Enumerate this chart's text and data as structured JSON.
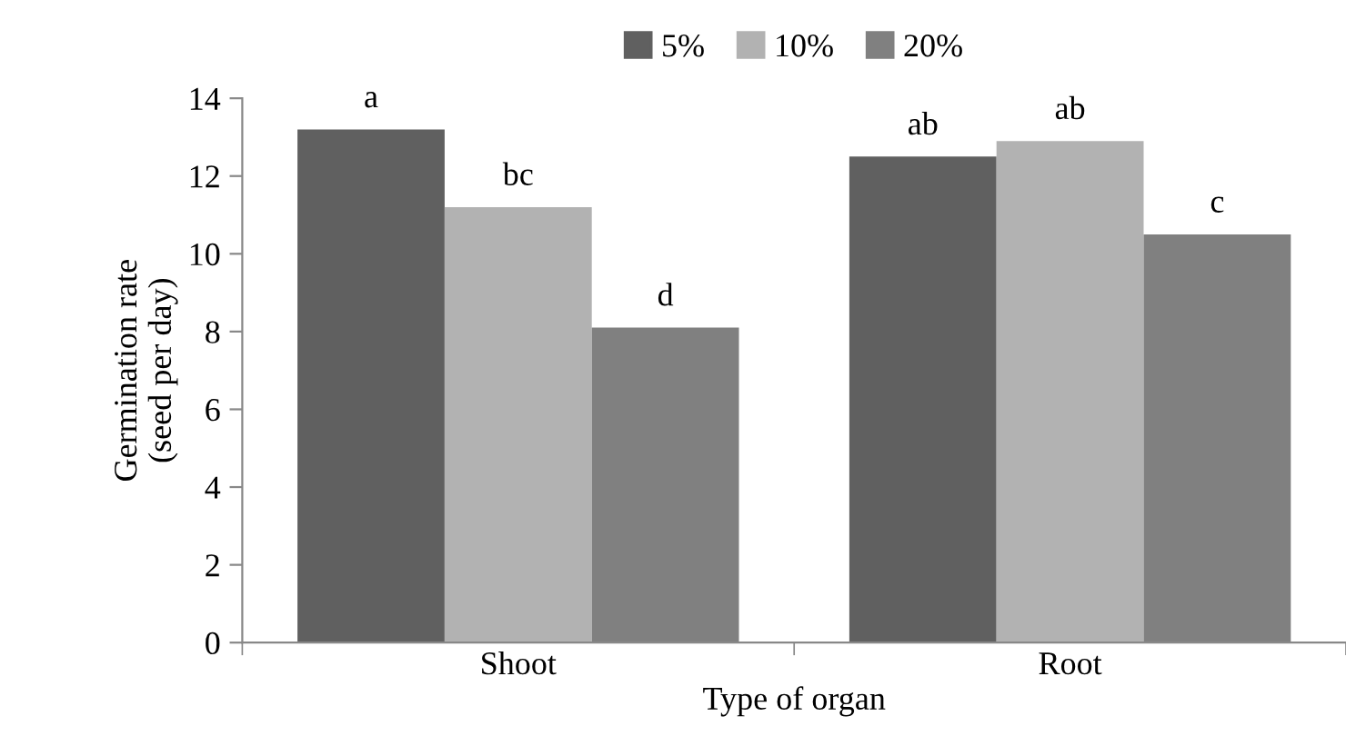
{
  "chart_data": {
    "type": "bar",
    "xlabel": "Type of organ",
    "ylabel": "Germination rate\n(seed per day)",
    "categories": [
      "Shoot",
      "Root"
    ],
    "series": [
      {
        "name": "5%",
        "color": "#606060",
        "values": [
          13.2,
          12.5
        ]
      },
      {
        "name": "10%",
        "color": "#b2b2b2",
        "values": [
          11.2,
          12.9
        ]
      },
      {
        "name": "20%",
        "color": "#808080",
        "values": [
          8.1,
          10.5
        ]
      }
    ],
    "annotations": [
      "a",
      "bc",
      "d",
      "ab",
      "ab",
      "c"
    ],
    "ylim": [
      0,
      14
    ],
    "yticks": [
      0,
      2,
      4,
      6,
      8,
      10,
      12,
      14
    ],
    "grid": false,
    "legend": "top"
  }
}
